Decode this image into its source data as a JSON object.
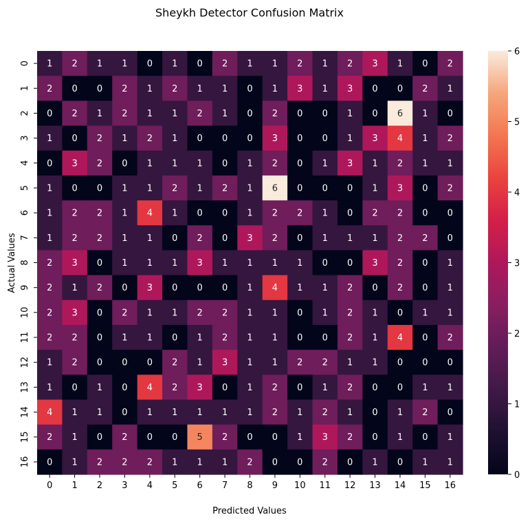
{
  "chart_data": {
    "type": "heatmap",
    "title": "Sheykh Detector Confusion Matrix",
    "xlabel": "Predicted Values",
    "ylabel": "Actual Values",
    "x_categories": [
      "0",
      "1",
      "2",
      "3",
      "4",
      "5",
      "6",
      "7",
      "8",
      "9",
      "10",
      "11",
      "12",
      "13",
      "14",
      "15",
      "16"
    ],
    "y_categories": [
      "0",
      "1",
      "2",
      "3",
      "4",
      "5",
      "6",
      "7",
      "8",
      "9",
      "10",
      "11",
      "12",
      "13",
      "14",
      "15",
      "16"
    ],
    "values": [
      [
        1,
        2,
        1,
        1,
        0,
        1,
        0,
        2,
        1,
        1,
        2,
        1,
        2,
        3,
        1,
        0,
        2
      ],
      [
        2,
        0,
        0,
        2,
        1,
        2,
        1,
        1,
        0,
        1,
        3,
        1,
        3,
        0,
        0,
        2,
        1
      ],
      [
        0,
        2,
        1,
        2,
        1,
        1,
        2,
        1,
        0,
        2,
        0,
        0,
        1,
        0,
        6,
        1,
        0
      ],
      [
        1,
        0,
        2,
        1,
        2,
        1,
        0,
        0,
        0,
        3,
        0,
        0,
        1,
        3,
        4,
        1,
        2
      ],
      [
        0,
        3,
        2,
        0,
        1,
        1,
        1,
        0,
        1,
        2,
        0,
        1,
        3,
        1,
        2,
        1,
        1
      ],
      [
        1,
        0,
        0,
        1,
        1,
        2,
        1,
        2,
        1,
        6,
        0,
        0,
        0,
        1,
        3,
        0,
        2
      ],
      [
        1,
        2,
        2,
        1,
        4,
        1,
        0,
        0,
        1,
        2,
        2,
        1,
        0,
        2,
        2,
        0,
        0
      ],
      [
        1,
        2,
        2,
        1,
        1,
        0,
        2,
        0,
        3,
        2,
        0,
        1,
        1,
        1,
        2,
        2,
        0
      ],
      [
        2,
        3,
        0,
        1,
        1,
        1,
        3,
        1,
        1,
        1,
        1,
        0,
        0,
        3,
        2,
        0,
        1
      ],
      [
        2,
        1,
        2,
        0,
        3,
        0,
        0,
        0,
        1,
        4,
        1,
        1,
        2,
        0,
        2,
        0,
        1
      ],
      [
        2,
        3,
        0,
        2,
        1,
        1,
        2,
        2,
        1,
        1,
        0,
        1,
        2,
        1,
        0,
        1,
        1
      ],
      [
        2,
        2,
        0,
        1,
        1,
        0,
        1,
        2,
        1,
        1,
        0,
        0,
        2,
        1,
        4,
        0,
        2
      ],
      [
        1,
        2,
        0,
        0,
        0,
        2,
        1,
        3,
        1,
        1,
        2,
        2,
        1,
        1,
        0,
        0,
        0
      ],
      [
        1,
        0,
        1,
        0,
        4,
        2,
        3,
        0,
        1,
        2,
        0,
        1,
        2,
        0,
        0,
        1,
        1
      ],
      [
        4,
        1,
        1,
        0,
        1,
        1,
        1,
        1,
        1,
        2,
        1,
        2,
        1,
        0,
        1,
        2,
        0
      ],
      [
        2,
        1,
        0,
        2,
        0,
        0,
        5,
        2,
        0,
        0,
        1,
        3,
        2,
        0,
        1,
        0,
        1
      ],
      [
        0,
        1,
        2,
        2,
        2,
        1,
        1,
        1,
        2,
        0,
        0,
        2,
        0,
        1,
        0,
        1,
        1
      ]
    ],
    "vmin": 0,
    "vmax": 6,
    "colorbar_ticks": [
      "0",
      "1",
      "2",
      "3",
      "4",
      "5",
      "6"
    ],
    "colormap": "rocket",
    "grid": false,
    "annotations": true
  }
}
